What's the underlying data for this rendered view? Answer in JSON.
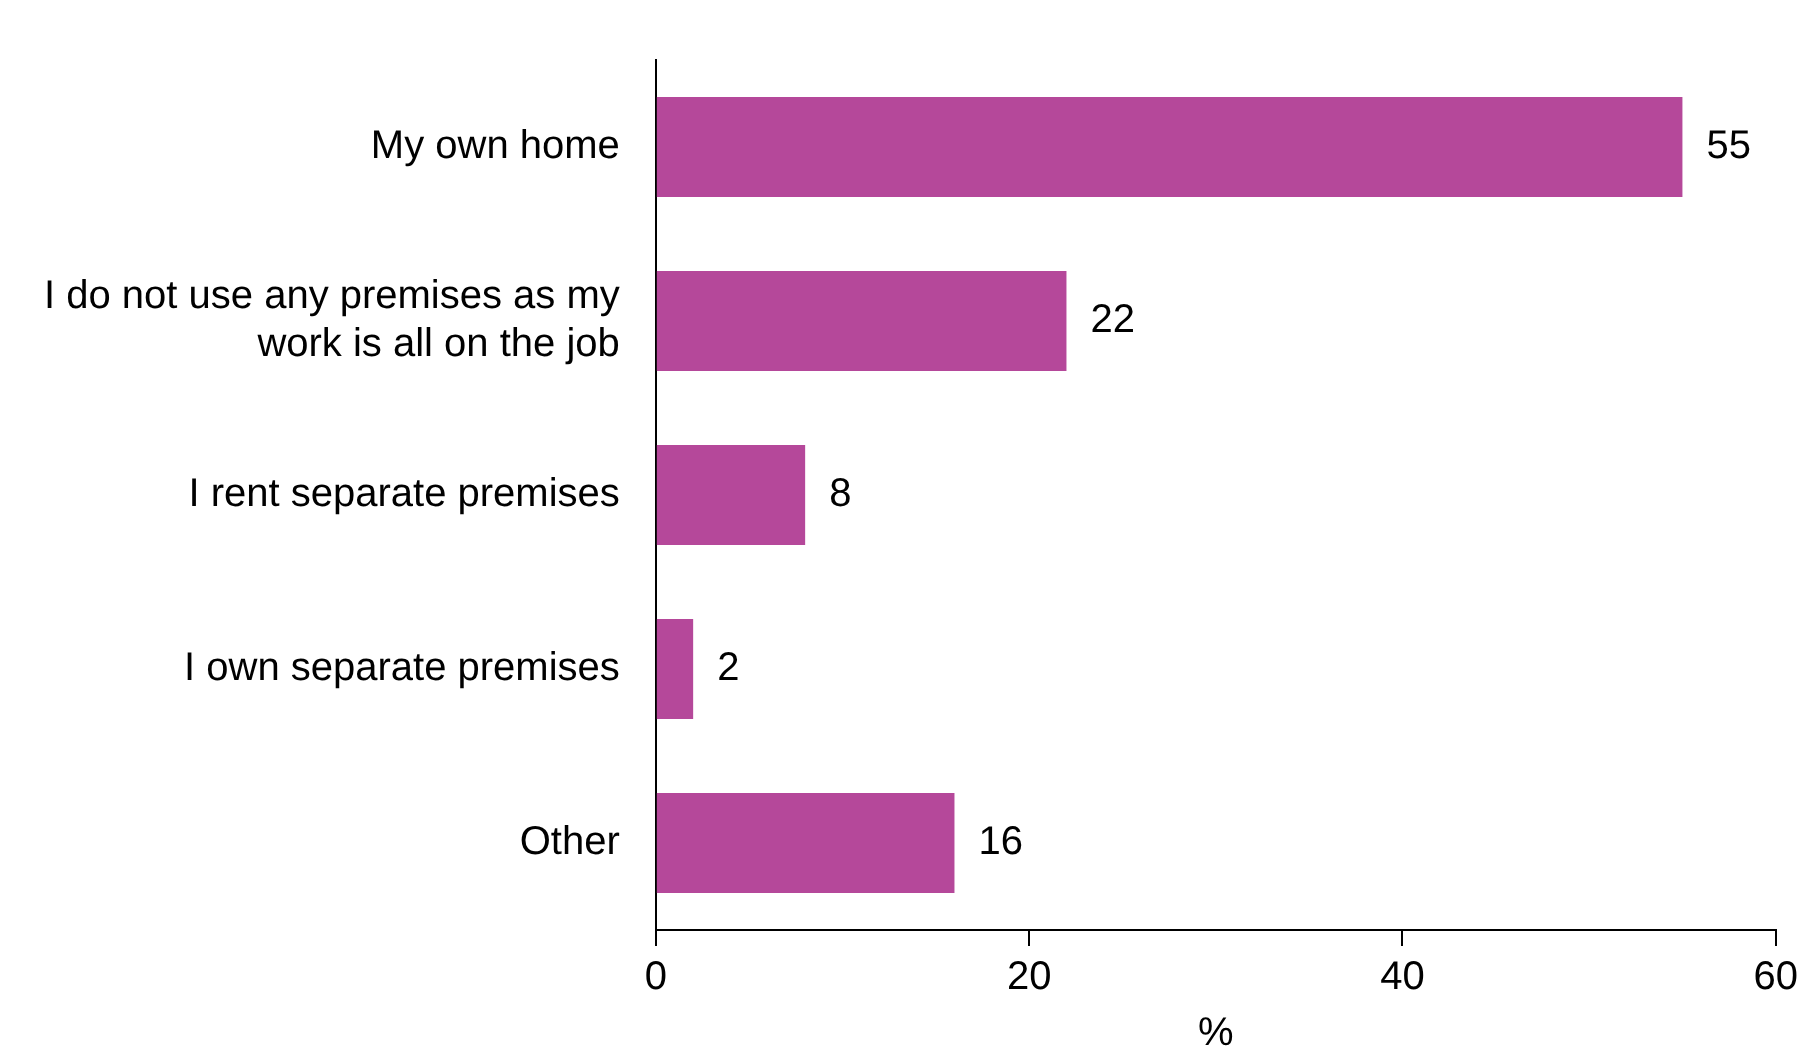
{
  "chart_data": {
    "type": "bar",
    "orientation": "horizontal",
    "categories": [
      "My own home",
      "I do not use any premises as my work is all on the job",
      "I rent separate premises",
      "I own separate premises",
      "Other"
    ],
    "values": [
      55,
      22,
      8,
      2,
      16
    ],
    "color": "#b5489a",
    "xlim": [
      0,
      60
    ],
    "xticks": [
      0,
      20,
      40,
      60
    ],
    "xlabel": "%",
    "data_labels": true,
    "grid": false,
    "legend": false
  }
}
